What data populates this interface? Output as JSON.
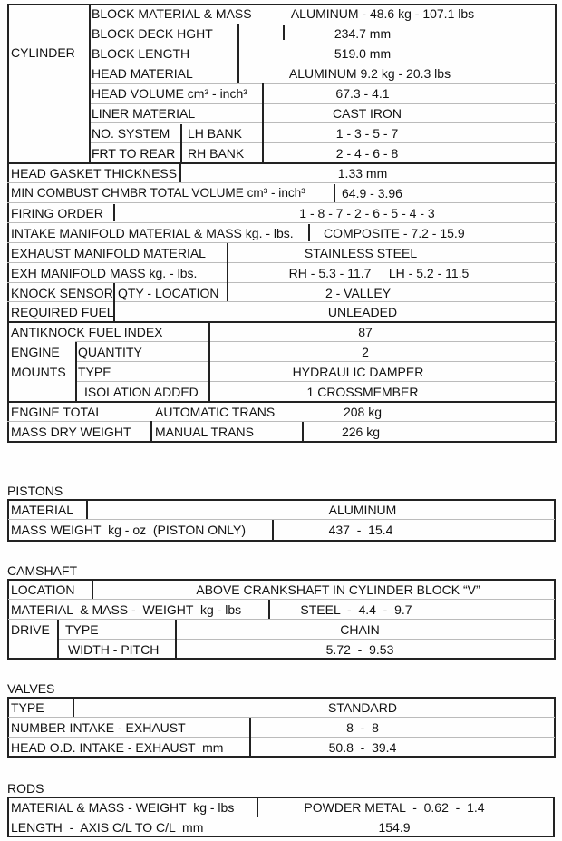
{
  "engine": {
    "cylinder": "CYLINDER",
    "block_material_label": "BLOCK MATERIAL & MASS",
    "block_material_value": "ALUMINUM  -  48.6 kg  -  107.1 lbs",
    "deck_label": "BLOCK DECK HGHT",
    "deck_value": "234.7 mm",
    "length_label": "BLOCK LENGTH",
    "length_value": "519.0 mm",
    "head_material_label": "HEAD MATERIAL",
    "head_material_value": "ALUMINUM   9.2 kg  -  20.3 lbs",
    "head_volume_label": "HEAD VOLUME cm³ - inch³",
    "head_volume_value": "67.3  -  4.1",
    "liner_label": "LINER MATERIAL",
    "liner_value": "CAST IRON",
    "no_system": "NO. SYSTEM",
    "lh_bank": "LH BANK",
    "lh_value": "1 - 3 - 5 - 7",
    "frt_rear": "FRT TO REAR",
    "rh_bank": "RH BANK",
    "rh_value": "2 - 4 - 6 - 8",
    "gasket_label": "HEAD GASKET THICKNESS",
    "gasket_value": "1.33 mm",
    "combust_label": "MIN COMBUST CHMBR TOTAL VOLUME cm³ - inch³",
    "combust_value": "64.9  - 3.96",
    "firing_label": "FIRING ORDER",
    "firing_value": "1 - 8 - 7 - 2 - 6 - 5 - 4 - 3",
    "intake_label": "INTAKE MANIFOLD MATERIAL & MASS kg. - lbs.",
    "intake_value": "COMPOSITE  -  7.2  -  15.9",
    "exhaust_label": "EXHAUST MANIFOLD MATERIAL",
    "exhaust_value": "STAINLESS STEEL",
    "exh_mass_label": "EXH MANIFOLD MASS kg. - lbs.",
    "exh_mass_value": "RH - 5.3 - 11.7     LH - 5.2 - 11.5",
    "knock_label": "KNOCK SENSOR",
    "knock_sub": "QTY - LOCATION",
    "knock_value": "2  -  VALLEY",
    "fuel_label": "REQUIRED FUEL",
    "fuel_value": "UNLEADED",
    "antiknock_label": "ANTIKNOCK FUEL INDEX",
    "antiknock_value": "87",
    "engine": "ENGINE",
    "mounts": "MOUNTS",
    "quantity_label": "QUANTITY",
    "quantity_value": "2",
    "type_label": "TYPE",
    "type_value": "HYDRAULIC DAMPER",
    "isolation_label": "ISOLATION ADDED",
    "isolation_value": "1 CROSSMEMBER",
    "engine_total": "ENGINE TOTAL",
    "auto_label": "AUTOMATIC TRANS",
    "auto_value": "208 kg",
    "mass_dry": "MASS DRY WEIGHT",
    "manual_label": "MANUAL TRANS",
    "manual_value": "226 kg"
  },
  "pistons": {
    "title": "PISTONS",
    "material_label": "MATERIAL",
    "material_value": "ALUMINUM",
    "mass_label": "MASS WEIGHT  kg - oz  (PISTON ONLY)",
    "mass_value": "437  -  15.4"
  },
  "camshaft": {
    "title": "CAMSHAFT",
    "location_label": "LOCATION",
    "location_value": "ABOVE CRANKSHAFT IN CYLINDER BLOCK “V”",
    "material_label": "MATERIAL  & MASS -  WEIGHT  kg - lbs",
    "material_value": "STEEL  -  4.4  -  9.7",
    "drive": "DRIVE",
    "type_label": "TYPE",
    "type_value": "CHAIN",
    "width_label": "WIDTH - PITCH",
    "width_value": "5.72  -  9.53"
  },
  "valves": {
    "title": "VALVES",
    "type_label": "TYPE",
    "type_value": "STANDARD",
    "number_label": "NUMBER INTAKE - EXHAUST",
    "number_value": "8  -  8",
    "head_label": "HEAD O.D. INTAKE - EXHAUST  mm",
    "head_value": "50.8  -  39.4"
  },
  "rods": {
    "title": "RODS",
    "material_label": "MATERIAL & MASS - WEIGHT  kg - lbs",
    "material_value": "POWDER METAL  -  0.62  -  1.4",
    "length_label": "LENGTH  -  AXIS C/L TO C/L  mm",
    "length_value": "154.9"
  }
}
